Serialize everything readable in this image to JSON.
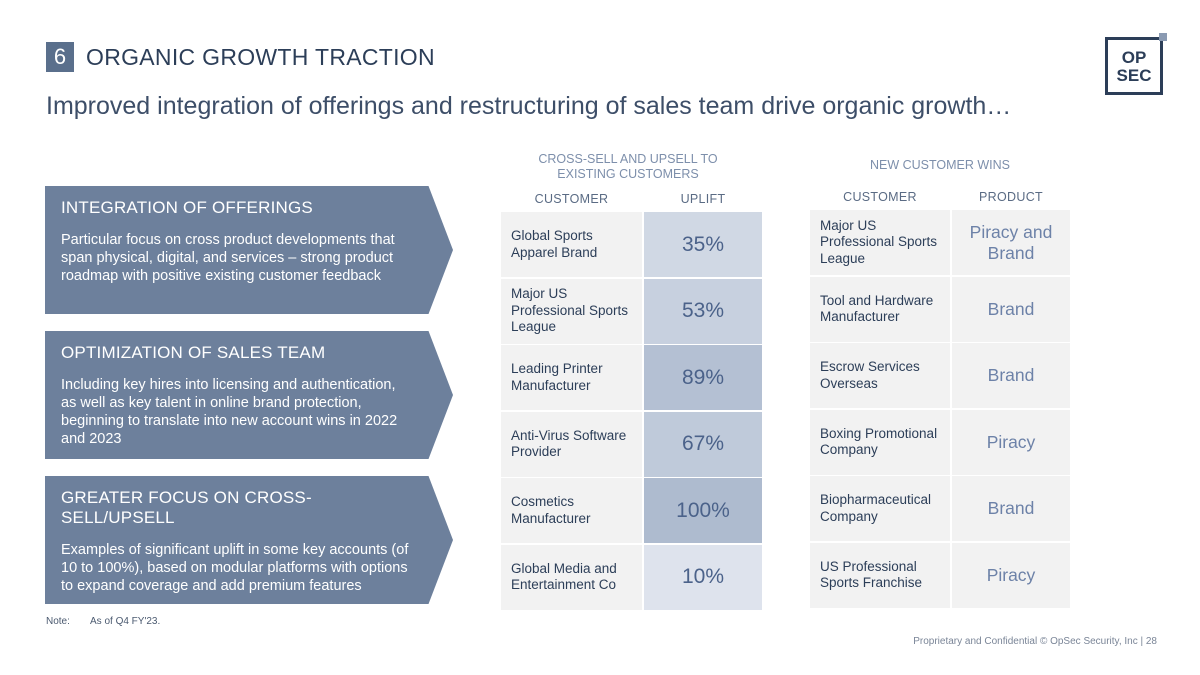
{
  "header": {
    "section_number": "6",
    "section_title": "ORGANIC GROWTH TRACTION",
    "subtitle": "Improved integration of offerings and restructuring of sales team drive organic growth…",
    "logo_line1": "OP",
    "logo_line2": "SEC"
  },
  "panels": [
    {
      "title": "INTEGRATION OF OFFERINGS",
      "body": "Particular focus on cross product developments that span physical, digital, and services – strong product roadmap with positive existing customer feedback"
    },
    {
      "title": "OPTIMIZATION OF SALES TEAM",
      "body": "Including key hires into licensing and authentication, as well as key talent in online brand protection, beginning to translate into new account wins in 2022 and 2023"
    },
    {
      "title": "GREATER FOCUS ON CROSS-SELL/UPSELL",
      "body": "Examples of significant uplift in some key accounts (of 10 to 100%), based on modular platforms with options to expand coverage and add premium features"
    }
  ],
  "crosssell": {
    "title": "CROSS-SELL AND UPSELL TO EXISTING CUSTOMERS",
    "col_customer": "CUSTOMER",
    "col_uplift": "UPLIFT",
    "rows": [
      {
        "customer": "Global Sports Apparel Brand",
        "uplift": "35%",
        "uplift_value": 35
      },
      {
        "customer": "Major US Professional Sports League",
        "uplift": "53%",
        "uplift_value": 53
      },
      {
        "customer": "Leading Printer Manufacturer",
        "uplift": "89%",
        "uplift_value": 89
      },
      {
        "customer": "Anti-Virus Software Provider",
        "uplift": "67%",
        "uplift_value": 67
      },
      {
        "customer": "Cosmetics Manufacturer",
        "uplift": "100%",
        "uplift_value": 100
      },
      {
        "customer": "Global Media and Entertainment Co",
        "uplift": "10%",
        "uplift_value": 10
      }
    ]
  },
  "newwins": {
    "title": "NEW CUSTOMER WINS",
    "col_customer": "CUSTOMER",
    "col_product": "PRODUCT",
    "rows": [
      {
        "customer": "Major US Professional Sports League",
        "product": "Piracy and Brand"
      },
      {
        "customer": "Tool and Hardware Manufacturer",
        "product": "Brand"
      },
      {
        "customer": "Escrow Services Overseas",
        "product": "Brand"
      },
      {
        "customer": "Boxing Promotional Company",
        "product": "Piracy"
      },
      {
        "customer": "Biopharmaceutical Company",
        "product": "Brand"
      },
      {
        "customer": "US Professional Sports Franchise",
        "product": "Piracy"
      }
    ]
  },
  "note": {
    "label": "Note:",
    "text": "As of Q4 FY'23."
  },
  "footer": "Proprietary and Confidential © OpSec Security, Inc  |  28",
  "colors": {
    "navy": "#2c3e58",
    "panel": "#6d809c",
    "uplift_heat_low": "#e3e7f0",
    "uplift_heat_high": "#aebbcf"
  }
}
